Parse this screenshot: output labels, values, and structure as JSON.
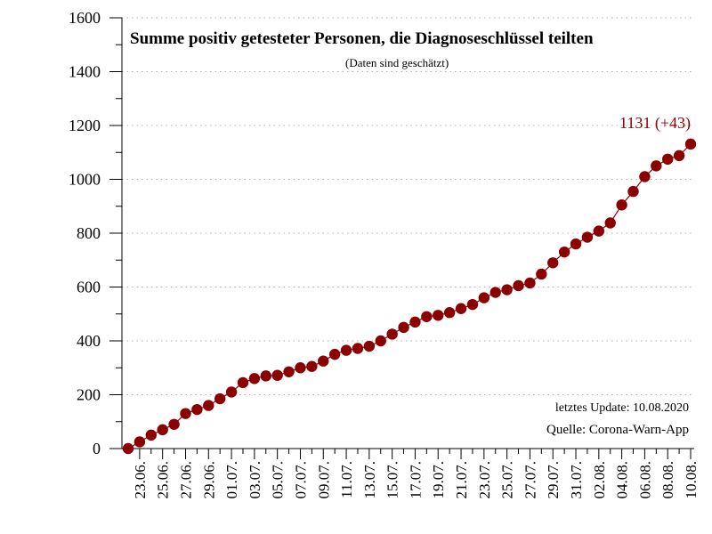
{
  "chart_data": {
    "type": "scatter",
    "title": "Summe positiv getesteter Personen, die Diagnoseschlüssel teilten",
    "subtitle": "(Daten sind geschätzt)",
    "xlabel": "",
    "ylabel": "",
    "ylim": [
      0,
      1600
    ],
    "yticks": [
      0,
      200,
      400,
      600,
      800,
      1000,
      1200,
      1400,
      1600
    ],
    "grid": true,
    "x": [
      "22.06.",
      "23.06.",
      "24.06.",
      "25.06.",
      "26.06.",
      "27.06.",
      "28.06.",
      "29.06.",
      "30.06.",
      "01.07.",
      "02.07.",
      "03.07.",
      "04.07.",
      "05.07.",
      "06.07.",
      "07.07.",
      "08.07.",
      "09.07.",
      "10.07.",
      "11.07.",
      "12.07.",
      "13.07.",
      "14.07.",
      "15.07.",
      "16.07.",
      "17.07.",
      "18.07.",
      "19.07.",
      "20.07.",
      "21.07.",
      "22.07.",
      "23.07.",
      "24.07.",
      "25.07.",
      "26.07.",
      "27.07.",
      "28.07.",
      "29.07.",
      "30.07.",
      "31.07.",
      "01.08.",
      "02.08.",
      "03.08.",
      "04.08.",
      "05.08.",
      "06.08.",
      "07.08.",
      "08.08.",
      "09.08.",
      "10.08."
    ],
    "x_tick_labels": [
      "23.06.",
      "25.06.",
      "27.06.",
      "29.06.",
      "01.07.",
      "03.07.",
      "05.07.",
      "07.07.",
      "09.07.",
      "11.07.",
      "13.07.",
      "15.07.",
      "17.07.",
      "19.07.",
      "21.07.",
      "23.07.",
      "25.07.",
      "27.07.",
      "29.07.",
      "31.07.",
      "02.08.",
      "04.08.",
      "06.08.",
      "08.08.",
      "10.08."
    ],
    "series": [
      {
        "color": "#8b0000",
        "values": [
          0,
          25,
          50,
          70,
          90,
          130,
          145,
          160,
          185,
          210,
          245,
          260,
          270,
          272,
          285,
          300,
          305,
          325,
          350,
          365,
          372,
          380,
          400,
          425,
          450,
          470,
          490,
          495,
          505,
          520,
          535,
          560,
          580,
          590,
          605,
          615,
          648,
          690,
          730,
          760,
          785,
          808,
          838,
          905,
          955,
          1010,
          1050,
          1075,
          1088,
          1131
        ]
      }
    ],
    "annotation_last": "1131 (+43)",
    "notes": {
      "update": "letztes Update: 10.08.2020",
      "source": "Quelle: Corona-Warn-App"
    }
  }
}
